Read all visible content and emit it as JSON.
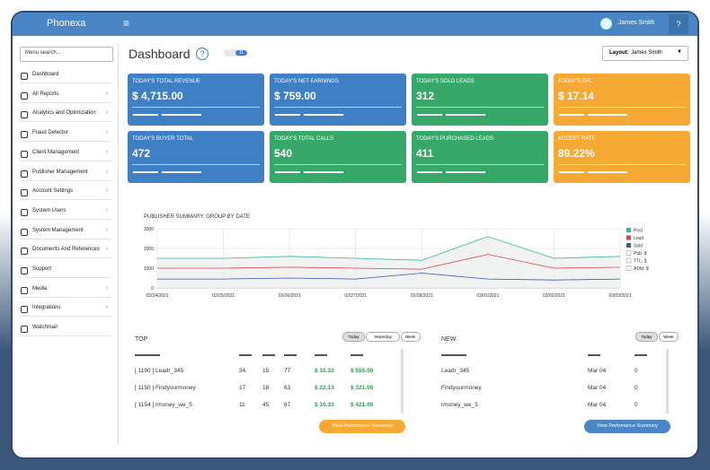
{
  "header": {
    "brand": "Phonexa",
    "user": "James Smith"
  },
  "sidebar": {
    "search": "Menu search...",
    "items": [
      "Dashboard",
      "All Reports",
      "Analytics and Optimization",
      "Fraud Detector",
      "Client Management",
      "Publisher Management",
      "Account Settings",
      "System Users",
      "System Management",
      "Documents And References",
      "Support",
      "Media",
      "Integrations",
      "Watchmail"
    ]
  },
  "page": {
    "title": "Dashboard",
    "badge": "11",
    "layout_label": "Layout:",
    "layout_value": "James Smith"
  },
  "cards": [
    {
      "label": "TODAY'S TOTAL REVENUE",
      "value": "$ 4,715.00",
      "color": "#3f7fc3"
    },
    {
      "label": "TODAY'S NET EARNINGS",
      "value": "$ 759.00",
      "color": "#3f7fc3"
    },
    {
      "label": "TODAY'S SOLD LEADS",
      "value": "312",
      "color": "#38a76a"
    },
    {
      "label": "TODAY'S EPL",
      "value": "$ 17.14",
      "color": "#f7a936"
    },
    {
      "label": "TODAY'S BUYER TOTAL",
      "value": "472",
      "color": "#3f7fc3"
    },
    {
      "label": "TODAY'S TOTAL CALLS",
      "value": "540",
      "color": "#38a76a"
    },
    {
      "label": "TODAY'S PURCHASED LEADS",
      "value": "411",
      "color": "#38a76a"
    },
    {
      "label": "ACCEPT RATE",
      "value": "89.22%",
      "color": "#f7a936"
    }
  ],
  "chart_data": {
    "type": "line",
    "title": "PUBLISHER SUMMARY: GROUP BY DATE",
    "categories": [
      "02/24/2021",
      "02/25/2021",
      "02/26/2021",
      "02/27/2021",
      "02/28/2021",
      "03/01/2021",
      "03/02/2021",
      "03/03/2021"
    ],
    "series": [
      {
        "name": "Post",
        "color": "#3bb3a3",
        "values": [
          1500,
          1500,
          1600,
          1500,
          1400,
          2600,
          1500,
          1600
        ]
      },
      {
        "name": "Lead",
        "color": "#d9434b",
        "values": [
          1000,
          1000,
          1050,
          1000,
          950,
          1700,
          1000,
          1050
        ]
      },
      {
        "name": "Sold",
        "color": "#3a55b4",
        "values": [
          450,
          450,
          500,
          450,
          750,
          450,
          400,
          450
        ]
      }
    ],
    "legend_extra": [
      "Pub. $",
      "TTL. $",
      "ADM. $"
    ],
    "ylim": [
      0,
      3000
    ],
    "yticks": [
      0,
      1000,
      2000,
      3000
    ],
    "grid": true
  },
  "top": {
    "title": "TOP",
    "filters": [
      "Today",
      "Yesterday",
      "Week"
    ],
    "rows": [
      [
        "[ 1190 ] Leadr_345",
        "34",
        "15",
        "77",
        "$ 10.33",
        "$ 555.00"
      ],
      [
        "[ 1150 ] Findyourmoney",
        "17",
        "18",
        "63",
        "$ 22.13",
        "$ 321.00"
      ],
      [
        "[ 1154 ] rmoney_we_5",
        "11",
        "45",
        "67",
        "$ 10.33",
        "$ 421.00"
      ]
    ],
    "button": "View Perfomance Summary"
  },
  "new": {
    "title": "NEW",
    "filters": [
      "Today",
      "Week"
    ],
    "rows": [
      [
        "Leadr_345",
        "Mar 04",
        "0"
      ],
      [
        "Findyourmoney",
        "Mar 04",
        "0"
      ],
      [
        "rmoney_we_5",
        "Mar 04",
        "0"
      ]
    ],
    "button": "View Perfomance Summary"
  }
}
